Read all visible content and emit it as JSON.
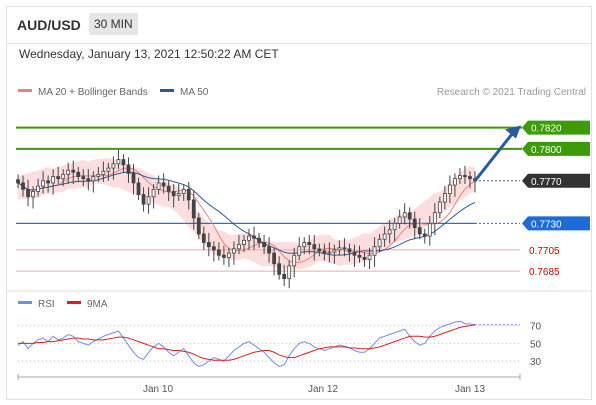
{
  "header": {
    "symbol": "AUD/USD",
    "timeframe": "30 MIN",
    "datetime": "Wednesday, January 13, 2021 12:50:22 AM CET"
  },
  "legend": {
    "ma20_label": "MA 20 + Bollinger Bands",
    "ma50_label": "MA 50",
    "credit": "Research © 2021 Trading Central"
  },
  "levels": {
    "r2": {
      "value": "0.7820",
      "color": "#3c9b06"
    },
    "r1": {
      "value": "0.7800",
      "color": "#3c9b06"
    },
    "current": {
      "value": "0.7770",
      "color": "#333333"
    },
    "pivot": {
      "value": "0.7730",
      "color": "#1e6bd6"
    },
    "s1": {
      "value": "0.7705",
      "color": "#cc0000"
    },
    "s2": {
      "value": "0.7685",
      "color": "#cc0000"
    }
  },
  "rsi_legend": {
    "rsi_label": "RSI",
    "ma_label": "9MA"
  },
  "chart_data": [
    {
      "type": "candlestick",
      "title": "AUD/USD 30 MIN",
      "ylim": [
        0.7672,
        0.7846
      ],
      "x_tick_labels": [
        "Jan 10",
        "Jan 12",
        "Jan 13"
      ],
      "series": [
        {
          "name": "MA 20 + Bollinger Bands",
          "color": "#f08080"
        },
        {
          "name": "MA 50",
          "color": "#2a5a8c"
        }
      ],
      "candles_close": [
        0.7768,
        0.7762,
        0.7755,
        0.776,
        0.7765,
        0.777,
        0.7768,
        0.7774,
        0.7772,
        0.7776,
        0.778,
        0.7778,
        0.7774,
        0.7772,
        0.777,
        0.7774,
        0.7776,
        0.7779,
        0.7782,
        0.7786,
        0.779,
        0.7785,
        0.7777,
        0.7768,
        0.7757,
        0.7748,
        0.7755,
        0.7762,
        0.7768,
        0.7765,
        0.776,
        0.7756,
        0.7758,
        0.7762,
        0.7752,
        0.7735,
        0.772,
        0.7712,
        0.7708,
        0.7705,
        0.77,
        0.7698,
        0.7702,
        0.7706,
        0.771,
        0.7714,
        0.7718,
        0.7716,
        0.7712,
        0.7708,
        0.7702,
        0.7692,
        0.7682,
        0.7678,
        0.769,
        0.77,
        0.7708,
        0.7712,
        0.771,
        0.7706,
        0.7704,
        0.7702,
        0.7703,
        0.7705,
        0.7707,
        0.7706,
        0.7703,
        0.77,
        0.7698,
        0.7696,
        0.77,
        0.7708,
        0.7715,
        0.772,
        0.7724,
        0.773,
        0.7736,
        0.774,
        0.7734,
        0.7726,
        0.772,
        0.7718,
        0.773,
        0.774,
        0.775,
        0.7758,
        0.7766,
        0.7772,
        0.7775,
        0.7774,
        0.7772,
        0.777
      ],
      "indicator": {
        "type": "line",
        "ylim": [
          20,
          82
        ],
        "y_ticks": [
          70,
          50,
          30
        ],
        "series": [
          {
            "name": "RSI",
            "color": "#6f8fe8",
            "values": [
              48,
              52,
              44,
              50,
              54,
              56,
              52,
              58,
              54,
              56,
              60,
              58,
              52,
              50,
              48,
              52,
              55,
              58,
              60,
              62,
              64,
              56,
              48,
              40,
              34,
              32,
              40,
              46,
              50,
              46,
              40,
              36,
              40,
              44,
              36,
              28,
              24,
              26,
              30,
              34,
              32,
              30,
              36,
              42,
              46,
              50,
              52,
              48,
              44,
              40,
              34,
              28,
              24,
              26,
              36,
              44,
              50,
              52,
              50,
              46,
              44,
              42,
              44,
              46,
              48,
              47,
              45,
              42,
              40,
              40,
              44,
              50,
              56,
              58,
              60,
              62,
              64,
              66,
              58,
              52,
              48,
              50,
              58,
              64,
              68,
              70,
              72,
              74,
              75,
              72,
              72,
              71
            ]
          },
          {
            "name": "9MA",
            "color": "#d92020",
            "values": [
              50,
              50,
              50,
              50,
              51,
              51,
              52,
              52,
              53,
              54,
              55,
              56,
              56,
              55,
              55,
              54,
              54,
              54,
              55,
              56,
              57,
              57,
              56,
              54,
              52,
              50,
              48,
              46,
              44,
              44,
              43,
              42,
              42,
              41,
              40,
              38,
              35,
              33,
              32,
              31,
              31,
              31,
              31,
              32,
              34,
              36,
              38,
              40,
              41,
              42,
              42,
              40,
              37,
              35,
              34,
              34,
              36,
              38,
              40,
              42,
              44,
              45,
              46,
              46,
              46,
              46,
              45,
              45,
              44,
              44,
              44,
              45,
              46,
              48,
              50,
              52,
              54,
              56,
              58,
              58,
              58,
              57,
              57,
              58,
              60,
              62,
              64,
              66,
              68,
              69,
              70,
              71
            ]
          }
        ]
      }
    }
  ]
}
